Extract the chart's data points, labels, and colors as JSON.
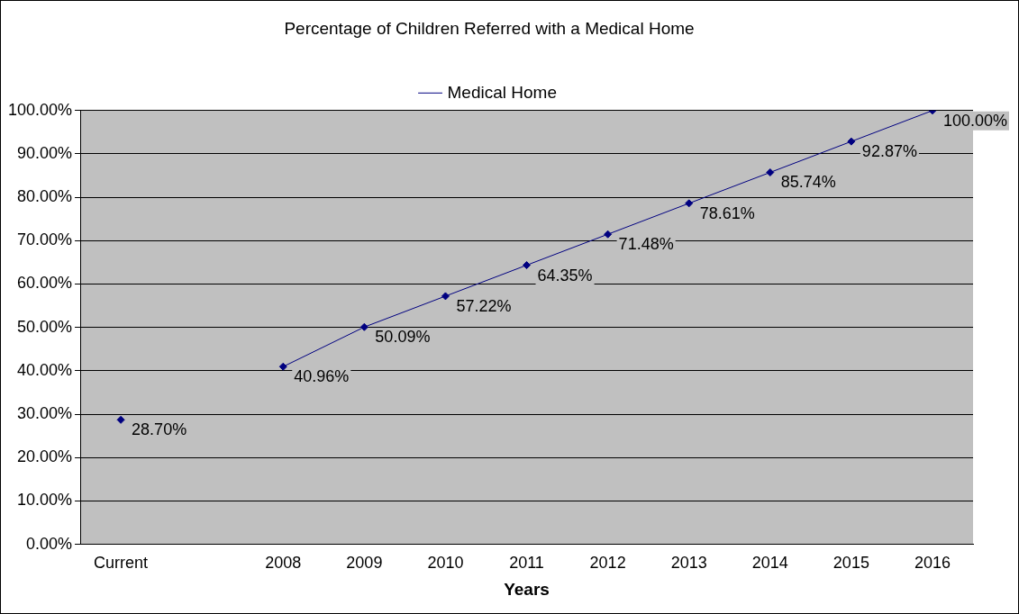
{
  "chart_data": {
    "type": "line",
    "title": "Percentage of Children Referred with a Medical Home",
    "xlabel": "Years",
    "categories": [
      "Current",
      null,
      "2008",
      "2009",
      "2010",
      "2011",
      "2012",
      "2013",
      "2014",
      "2015",
      "2016"
    ],
    "series": [
      {
        "name": "Medical Home",
        "color": "#000080",
        "values": [
          28.7,
          null,
          40.96,
          50.09,
          57.22,
          64.35,
          71.48,
          78.61,
          85.74,
          92.87,
          100
        ],
        "value_labels": [
          "28.70%",
          null,
          "40.96%",
          "50.09%",
          "57.22%",
          "64.35%",
          "71.48%",
          "78.61%",
          "85.74%",
          "92.87%",
          "100.00%"
        ]
      }
    ],
    "ylim": [
      0,
      100
    ],
    "yticks": [
      {
        "value": 0,
        "label": "0.00%"
      },
      {
        "value": 10,
        "label": "10.00%"
      },
      {
        "value": 20,
        "label": "20.00%"
      },
      {
        "value": 30,
        "label": "30.00%"
      },
      {
        "value": 40,
        "label": "40.00%"
      },
      {
        "value": 50,
        "label": "50.00%"
      },
      {
        "value": 60,
        "label": "60.00%"
      },
      {
        "value": 70,
        "label": "70.00%"
      },
      {
        "value": 80,
        "label": "80.00%"
      },
      {
        "value": 90,
        "label": "90.00%"
      },
      {
        "value": 100,
        "label": "100.00%"
      }
    ],
    "grid": "y",
    "legend": "top",
    "marker": "diamond",
    "line_style": "solid"
  }
}
